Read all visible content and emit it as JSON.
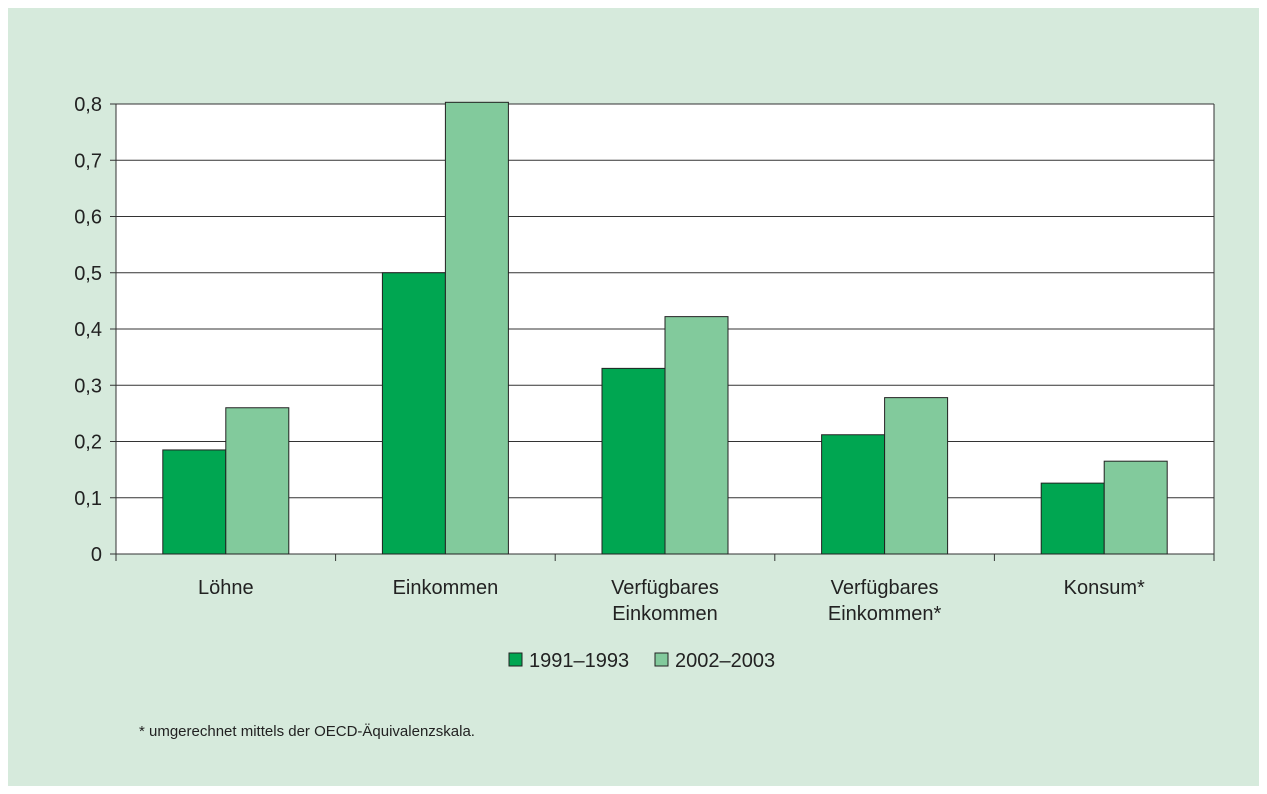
{
  "chart_data": {
    "type": "bar",
    "categories": [
      [
        "Löhne"
      ],
      [
        "Einkommen"
      ],
      [
        "Verfügbares",
        "Einkommen"
      ],
      [
        "Verfügbares",
        "Einkommen*"
      ],
      [
        "Konsum*"
      ]
    ],
    "series": [
      {
        "name": "1991–1993",
        "color": "#00a651",
        "values": [
          0.185,
          0.5,
          0.33,
          0.212,
          0.126
        ]
      },
      {
        "name": "2002–2003",
        "color": "#82ca9c",
        "values": [
          0.26,
          0.803,
          0.422,
          0.278,
          0.165
        ]
      }
    ],
    "yticks": [
      "0",
      "0,1",
      "0,2",
      "0,3",
      "0,4",
      "0,5",
      "0,6",
      "0,7",
      "0,8"
    ],
    "ylim": [
      0,
      0.8
    ],
    "grid": true,
    "legend_position": "bottom-center",
    "footnote": "* umgerechnet mittels der OECD-Äquivalenzskala."
  }
}
